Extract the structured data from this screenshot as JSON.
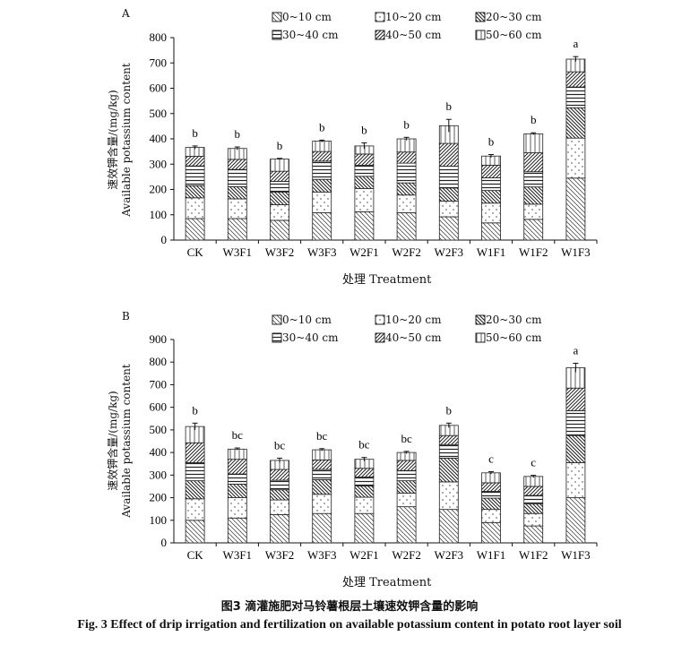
{
  "figure": {
    "caption_cn": "图3  滴灌施肥对马铃薯根层土壤速效钾含量的影响",
    "caption_en": "Fig. 3   Effect of drip irrigation and fertilization on available potassium content in potato root layer soil"
  },
  "chart_data": [
    {
      "type": "bar",
      "stacked": true,
      "panel": "A",
      "ylabel_cn": "速效钾含量/(mg/kg)",
      "ylabel_en": "Available potassium content",
      "xlabel": "处理 Treatment",
      "ylim": [
        0,
        800
      ],
      "yticks": [
        0,
        100,
        200,
        300,
        400,
        500,
        600,
        700,
        800
      ],
      "categories": [
        "CK",
        "W3F1",
        "W3F2",
        "W3F3",
        "W2F1",
        "W2F2",
        "W2F3",
        "W1F1",
        "W1F2",
        "W1F3"
      ],
      "series": [
        {
          "name": "0~10 cm",
          "values": [
            85,
            85,
            78,
            108,
            112,
            108,
            92,
            68,
            82,
            245
          ]
        },
        {
          "name": "10~20 cm",
          "values": [
            82,
            78,
            62,
            82,
            92,
            70,
            62,
            78,
            60,
            158
          ]
        },
        {
          "name": "20~30 cm",
          "values": [
            48,
            48,
            50,
            50,
            48,
            48,
            52,
            50,
            68,
            120
          ]
        },
        {
          "name": "30~40 cm",
          "values": [
            78,
            68,
            42,
            72,
            44,
            78,
            86,
            50,
            60,
            82
          ]
        },
        {
          "name": "40~50 cm",
          "values": [
            38,
            40,
            40,
            38,
            44,
            44,
            90,
            50,
            75,
            60
          ]
        },
        {
          "name": "50~60 cm",
          "values": [
            35,
            43,
            48,
            41,
            32,
            52,
            70,
            36,
            75,
            50
          ]
        }
      ],
      "error": [
        6,
        6,
        3,
        4,
        12,
        6,
        25,
        6,
        4,
        10
      ],
      "letters": [
        "b",
        "b",
        "b",
        "b",
        "b",
        "b",
        "b",
        "b",
        "b",
        "a"
      ],
      "legend": "top"
    },
    {
      "type": "bar",
      "stacked": true,
      "panel": "B",
      "ylabel_cn": "速效钾含量/(mg/kg)",
      "ylabel_en": "Available potassium content",
      "xlabel": "处理 Treatment",
      "ylim": [
        0,
        900
      ],
      "yticks": [
        0,
        100,
        200,
        300,
        400,
        500,
        600,
        700,
        800,
        900
      ],
      "categories": [
        "CK",
        "W3F1",
        "W3F2",
        "W3F3",
        "W2F1",
        "W2F2",
        "W2F3",
        "W1F1",
        "W1F2",
        "W1F3"
      ],
      "series": [
        {
          "name": "0~10 cm",
          "values": [
            100,
            110,
            125,
            130,
            130,
            160,
            148,
            90,
            75,
            200
          ]
        },
        {
          "name": "10~20 cm",
          "values": [
            95,
            90,
            65,
            85,
            72,
            60,
            122,
            58,
            55,
            155
          ]
        },
        {
          "name": "20~30 cm",
          "values": [
            80,
            60,
            45,
            65,
            50,
            55,
            105,
            50,
            42,
            120
          ]
        },
        {
          "name": "30~40 cm",
          "values": [
            80,
            45,
            42,
            45,
            40,
            45,
            60,
            30,
            38,
            110
          ]
        },
        {
          "name": "40~50 cm",
          "values": [
            88,
            65,
            48,
            42,
            38,
            45,
            40,
            38,
            40,
            100
          ]
        },
        {
          "name": "50~60 cm",
          "values": [
            72,
            45,
            40,
            45,
            40,
            35,
            45,
            44,
            44,
            90
          ]
        }
      ],
      "error": [
        15,
        5,
        10,
        5,
        8,
        5,
        10,
        5,
        5,
        20
      ],
      "letters": [
        "b",
        "bc",
        "bc",
        "bc",
        "bc",
        "bc",
        "b",
        "c",
        "c",
        "a"
      ],
      "legend": "top"
    }
  ],
  "swatch_style": {
    "0~10 cm": "diag-down",
    "10~20 cm": "dots",
    "20~30 cm": "diag-dense",
    "30~40 cm": "horizontal",
    "40~50 cm": "diag-up",
    "50~60 cm": "vertical"
  }
}
